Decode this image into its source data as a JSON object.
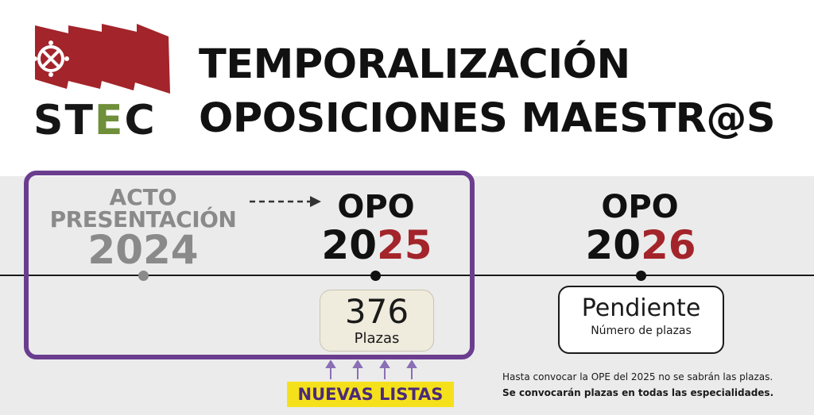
{
  "brand": {
    "logo_icon": "stec-flag-logo-icon",
    "name_start": "ST",
    "name_middle": "E",
    "name_end": "C",
    "accent": "#a3242a",
    "e_color": "#6f8f3a"
  },
  "title": {
    "line1": "TEMPORALIZACIÓN",
    "line2": "OPOSICIONES MAESTR@S"
  },
  "colors": {
    "frame": "#6a3d8f",
    "band": "#ebebeb",
    "highlight": "#f5e11b",
    "highlight_text": "#4b2a7a"
  },
  "timeline": {
    "acto": {
      "line1": "ACTO",
      "line2": "PRESENTACIÓN",
      "year": "2024"
    },
    "opo2025": {
      "label": "OPO",
      "year_dark": "20",
      "year_red": "25",
      "count": "376",
      "unit": "Plazas"
    },
    "opo2026": {
      "label": "OPO",
      "year_dark": "20",
      "year_red": "26",
      "status": "Pendiente",
      "status_sub": "Número de plazas"
    }
  },
  "listas": {
    "label": "NUEVAS LISTAS"
  },
  "notes": {
    "line1": "Hasta convocar la OPE del 2025 no se sabrán las plazas.",
    "line2": "Se convocarán plazas en todas las especialidades."
  }
}
